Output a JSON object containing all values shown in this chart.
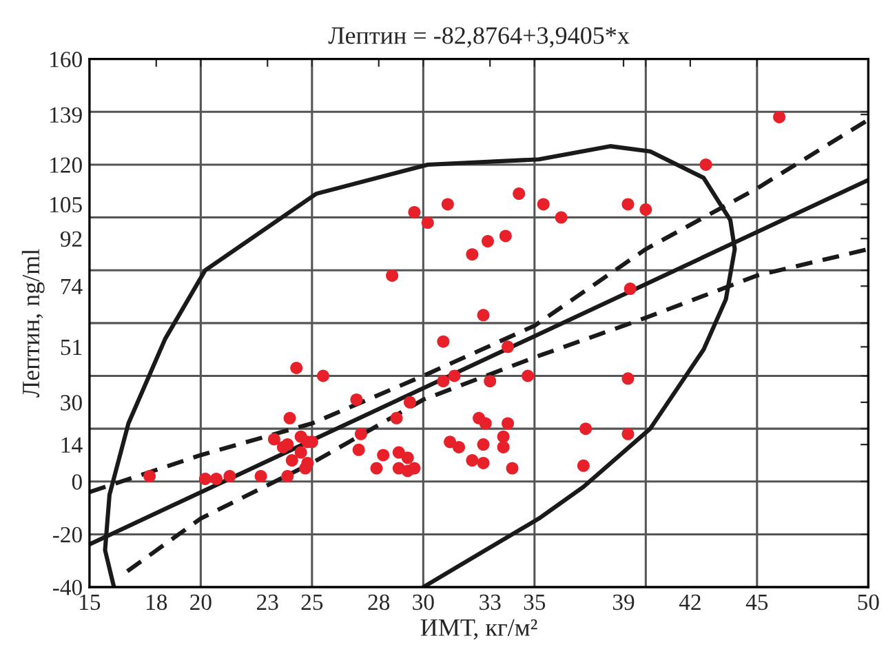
{
  "chart_data": {
    "type": "scatter",
    "title": "Лептин = -82,8764+3,9405*x",
    "xlabel": "ИМТ, кг/м²",
    "ylabel": "Лептин, ng/ml",
    "xlim": [
      15,
      50
    ],
    "ylim": [
      -40,
      160
    ],
    "xticks": [
      15,
      18,
      20,
      23,
      25,
      28,
      30,
      33,
      35,
      39,
      42,
      45,
      50,
      {
        "value": 20,
        "label": null
      },
      {
        "value": 25,
        "label": null
      },
      {
        "value": 30,
        "label": null
      },
      {
        "value": 35,
        "label": null
      },
      {
        "value": 40,
        "label": null
      },
      {
        "value": 45,
        "label": null
      }
    ],
    "yticks": [
      -40,
      -20,
      0,
      14,
      30,
      51,
      74,
      92,
      105,
      120,
      139,
      160,
      {
        "value": -20,
        "label": null
      },
      {
        "value": 0,
        "label": null
      },
      {
        "value": 20,
        "label": null
      },
      {
        "value": 40,
        "label": null
      },
      {
        "value": 60,
        "label": null
      },
      {
        "value": 80,
        "label": null
      },
      {
        "value": 100,
        "label": null
      },
      {
        "value": 120,
        "label": null
      },
      {
        "value": 140,
        "label": null
      }
    ],
    "grid": true,
    "series": [
      {
        "color": "#e8202a",
        "marker": "circle",
        "x": [
          17.7,
          20.2,
          20.7,
          21.3,
          22.7,
          23.9,
          23.3,
          23.7,
          23.9,
          24.0,
          24.3,
          24.5,
          24.5,
          24.1,
          24.8,
          25.0,
          24.8,
          24.7,
          25.5,
          27.0,
          27.2,
          27.1,
          27.9,
          28.2,
          28.6,
          28.8,
          28.9,
          28.9,
          29.3,
          29.3,
          29.6,
          29.4,
          29.6,
          30.2,
          30.9,
          30.9,
          31.4,
          31.1,
          31.2,
          31.6,
          32.2,
          32.9,
          33.7,
          34.3,
          35.4,
          36.2,
          39.2,
          40.0,
          42.7,
          46.0,
          39.3,
          32.7,
          33.8,
          34.7,
          33.0,
          32.5,
          32.8,
          33.8,
          33.6,
          32.7,
          33.6,
          32.2,
          32.7,
          34.0,
          39.2,
          37.3,
          39.2,
          37.2
        ],
        "values": [
          2,
          1,
          1,
          2,
          2,
          2,
          16,
          13,
          14,
          24,
          43,
          17,
          11,
          8,
          15,
          15,
          7,
          5,
          40,
          31,
          18,
          12,
          5,
          10,
          78,
          24,
          11,
          5,
          9,
          4,
          5,
          30,
          102,
          98,
          53,
          38,
          40,
          105,
          15,
          13,
          86,
          91,
          93,
          109,
          105,
          100,
          105,
          103,
          120,
          138,
          73,
          63,
          51,
          40,
          38,
          24,
          22,
          22,
          17,
          14,
          13,
          8,
          7,
          5,
          39,
          20,
          18,
          6
        ]
      },
      {
        "type": "line",
        "color": "#1a1a1a",
        "line_style": "solid",
        "x": [
          15,
          50
        ],
        "values": [
          -23.8,
          114.2
        ]
      },
      {
        "type": "line",
        "color": "#1a1a1a",
        "line_style": "dashed",
        "x": [
          15,
          20,
          25,
          30,
          35,
          40,
          45,
          50
        ],
        "values": [
          -4,
          10,
          22,
          40,
          59,
          88,
          111,
          137
        ]
      },
      {
        "type": "line",
        "color": "#1a1a1a",
        "line_style": "dashed",
        "x": [
          16.7,
          20,
          25,
          30,
          35,
          40,
          45,
          50
        ],
        "values": [
          -34,
          -14,
          7,
          31,
          47,
          62,
          78,
          88
        ]
      },
      {
        "type": "line",
        "color": "#1a1a1a",
        "line_style": "solid",
        "x": [
          16.1,
          15.7,
          15.9,
          16.75,
          18.4,
          20.2,
          25.2,
          30.2,
          35.2,
          38.4,
          40.2,
          42.6,
          43.8,
          44.0,
          43.6,
          42.6,
          40.2,
          37.2,
          35.2,
          31.4,
          30.0
        ],
        "values": [
          -40,
          -26,
          -5,
          22,
          54,
          80,
          109,
          120,
          122,
          127,
          125,
          115,
          99,
          88,
          69,
          50,
          20,
          -2,
          -14,
          -33,
          -40
        ]
      }
    ]
  }
}
